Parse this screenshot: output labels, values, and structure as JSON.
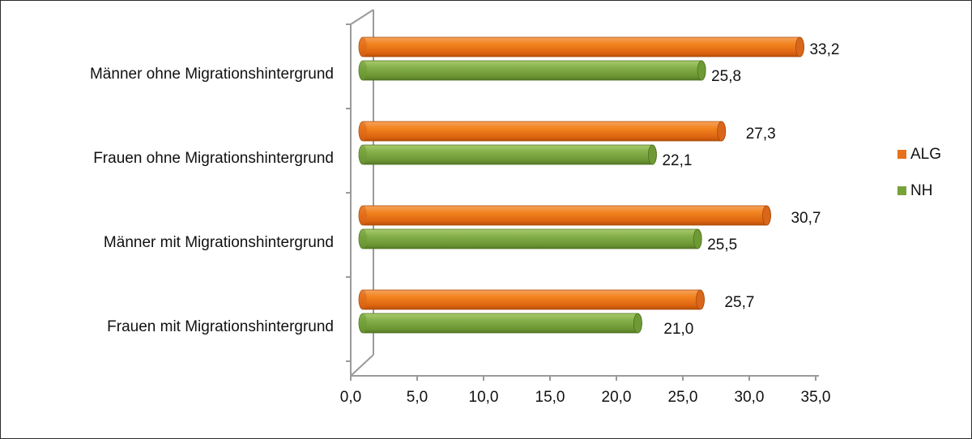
{
  "chart_data": {
    "type": "bar",
    "orientation": "horizontal",
    "style": "3d-cylinder",
    "categories": [
      "Männer ohne Migrationshintergrund",
      "Frauen ohne Migrationshintergrund",
      "Männer mit Migrationshintergrund",
      "Frauen mit Migrationshintergrund"
    ],
    "series": [
      {
        "name": "ALG",
        "color": "#E8711C",
        "values": [
          33.2,
          27.3,
          30.7,
          25.7
        ],
        "labels": [
          "33,2",
          "27,3",
          "30,7",
          "25,7"
        ]
      },
      {
        "name": "NH",
        "color": "#77A23A",
        "values": [
          25.8,
          22.1,
          25.5,
          21.0
        ],
        "labels": [
          "25,8",
          "22,1",
          "25,5",
          "21,0"
        ]
      }
    ],
    "x_ticks": [
      "0,0",
      "5,0",
      "10,0",
      "15,0",
      "20,0",
      "25,0",
      "30,0",
      "35,0"
    ],
    "xlim": [
      0,
      35
    ],
    "title": "",
    "xlabel": "",
    "ylabel": "",
    "grid": false,
    "legend_position": "right"
  }
}
